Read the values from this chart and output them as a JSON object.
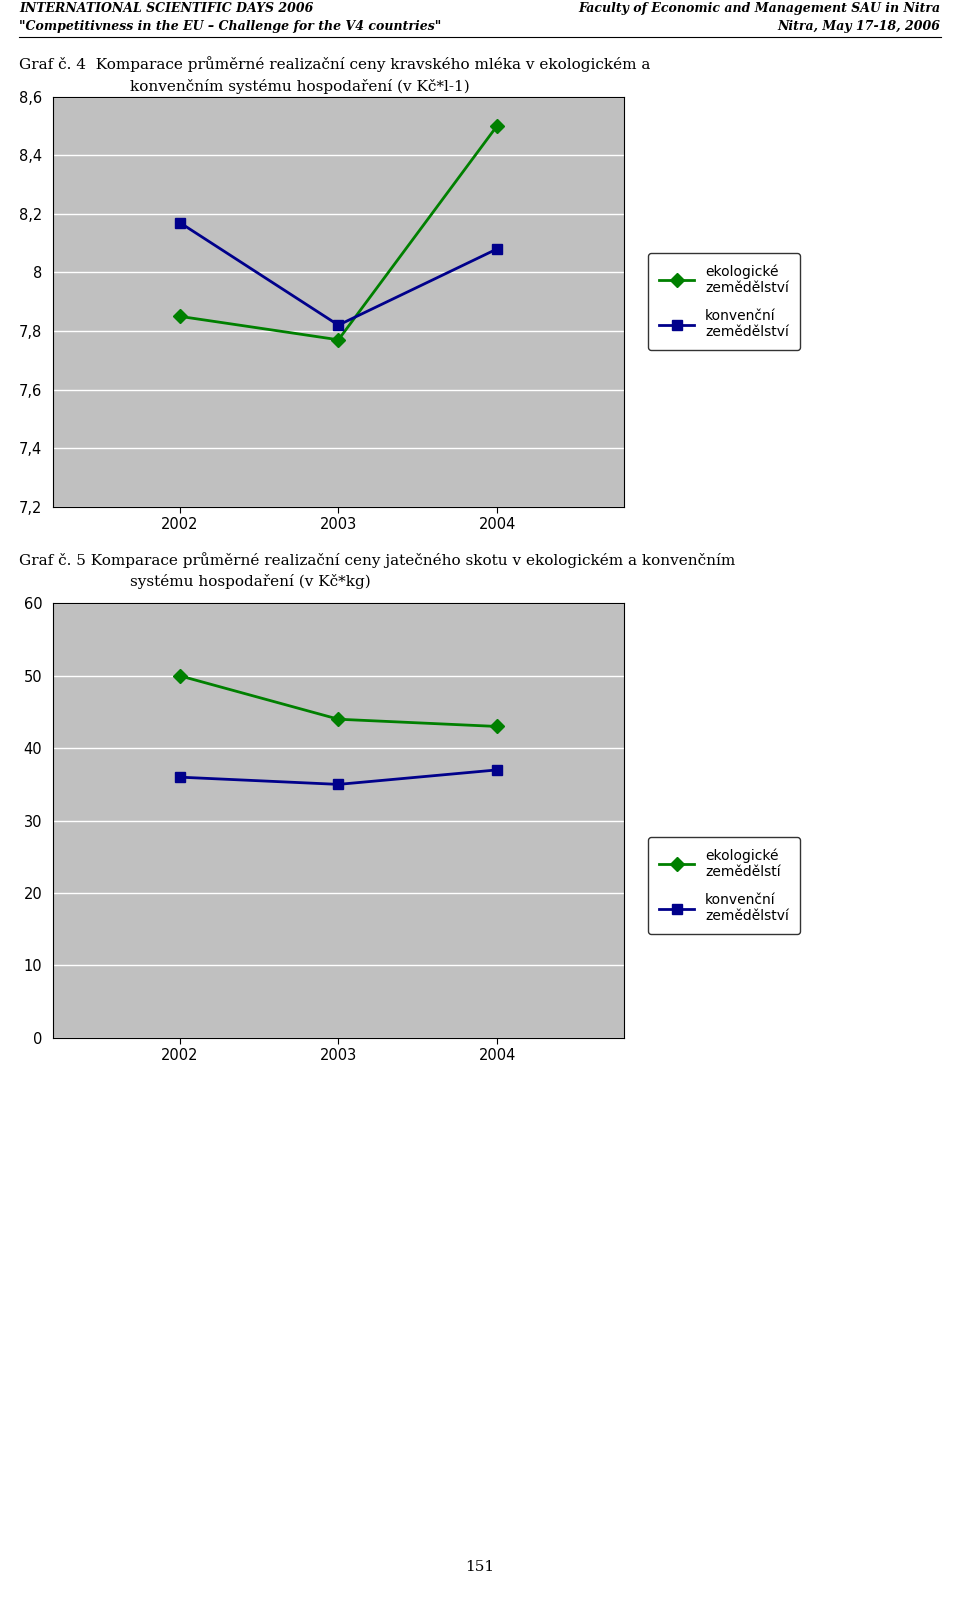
{
  "header_left_line1": "INTERNATIONAL SCIENTIFIC DAYS 2006",
  "header_left_line2": "\"Competitivness in the EU – Challenge for the V4 countries\"",
  "header_right_line1": "Faculty of Economic and Management SAU in Nitra",
  "header_right_line2": "Nitra, May 17-18, 2006",
  "chart4_title_line1": "Graf č. 4  Komparace průměrné realizační ceny kravského mléka v ekologickém a",
  "chart4_title_line2": "konvenčním systému hospodaření (v Kč*l-1)",
  "chart5_title_line1": "Graf č. 5 Komparace průměrné realizační ceny jatečného skotu v ekologickém a konvenčním",
  "chart5_title_line2": "systému hospodaření (v Kč*kg)",
  "footer_text": "151",
  "years": [
    2002,
    2003,
    2004
  ],
  "chart4_eco": [
    7.85,
    7.77,
    8.5
  ],
  "chart4_conv": [
    8.17,
    7.82,
    8.08
  ],
  "chart4_ylim": [
    7.2,
    8.6
  ],
  "chart4_yticks": [
    7.2,
    7.4,
    7.6,
    7.8,
    8.0,
    8.2,
    8.4,
    8.6
  ],
  "chart5_eco": [
    50.0,
    44.0,
    43.0
  ],
  "chart5_conv": [
    36.0,
    35.0,
    37.0
  ],
  "chart5_ylim": [
    0,
    60
  ],
  "chart5_yticks": [
    0,
    10,
    20,
    30,
    40,
    50,
    60
  ],
  "eco_color": "#008000",
  "conv_color": "#00008B",
  "plot_bg_color": "#C0C0C0",
  "fig_bg_color": "#FFFFFF",
  "legend_eco_chart4": [
    "ekologické",
    "zemědělství"
  ],
  "legend_conv_chart4": [
    "konvenční",
    "zemědělství"
  ],
  "legend_eco_chart5": [
    "ekologické",
    "zemědělstí"
  ],
  "legend_conv_chart5": [
    "konvenční",
    "zemědělství"
  ]
}
